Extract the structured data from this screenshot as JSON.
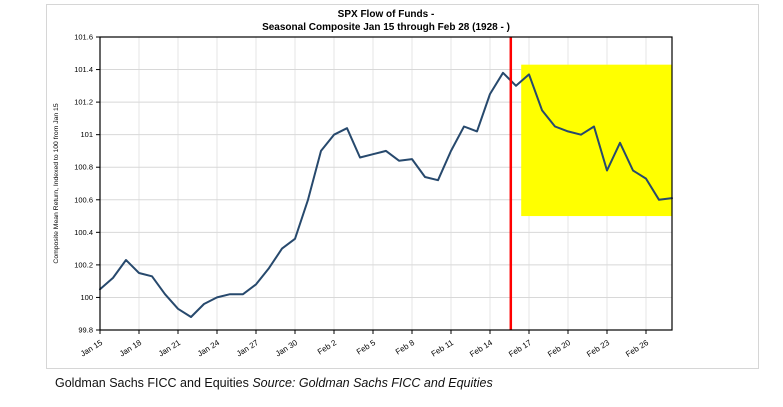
{
  "figure": {
    "title_line1": "SPX Flow of Funds -",
    "title_line2": "Seasonal Composite Jan 15 through Feb 28 (1928 - )"
  },
  "caption": {
    "text": "Goldman Sachs FICC and Equities ",
    "source": "Source: Goldman Sachs FICC and Equities"
  },
  "chart_data": {
    "type": "line",
    "title": "SPX Flow of Funds - Seasonal Composite Jan 15 through Feb 28 (1928 - )",
    "ylabel": "Composite Mean Return, Indexed to 100 from Jan 15",
    "xlabel": "",
    "ylim": [
      99.8,
      101.6
    ],
    "xlim": [
      0,
      44
    ],
    "x_unit": "days since Jan 15",
    "grid": true,
    "legend": "none",
    "line_color": "#27496d",
    "vline": {
      "x": 31.6,
      "color": "#ff0000"
    },
    "highlight_region": {
      "x0": 32.4,
      "x1": 44,
      "y0": 100.5,
      "y1": 101.43,
      "color": "#ffff00"
    },
    "yticks": [
      {
        "v": 99.8,
        "label": "99.8"
      },
      {
        "v": 100.0,
        "label": "100"
      },
      {
        "v": 100.2,
        "label": "100.2"
      },
      {
        "v": 100.4,
        "label": "100.4"
      },
      {
        "v": 100.6,
        "label": "100.6"
      },
      {
        "v": 100.8,
        "label": "100.8"
      },
      {
        "v": 101.0,
        "label": "101"
      },
      {
        "v": 101.2,
        "label": "101.2"
      },
      {
        "v": 101.4,
        "label": "101.4"
      },
      {
        "v": 101.6,
        "label": "101.6"
      }
    ],
    "xticks": [
      {
        "d": 0,
        "label": "Jan 15"
      },
      {
        "d": 3,
        "label": "Jan 18"
      },
      {
        "d": 6,
        "label": "Jan 21"
      },
      {
        "d": 9,
        "label": "Jan 24"
      },
      {
        "d": 12,
        "label": "Jan 27"
      },
      {
        "d": 15,
        "label": "Jan 30"
      },
      {
        "d": 18,
        "label": "Feb 2"
      },
      {
        "d": 21,
        "label": "Feb 5"
      },
      {
        "d": 24,
        "label": "Feb 8"
      },
      {
        "d": 27,
        "label": "Feb 11"
      },
      {
        "d": 30,
        "label": "Feb 14"
      },
      {
        "d": 33,
        "label": "Feb 17"
      },
      {
        "d": 36,
        "label": "Feb 20"
      },
      {
        "d": 39,
        "label": "Feb 23"
      },
      {
        "d": 42,
        "label": "Feb 26"
      }
    ],
    "series": [
      {
        "name": "seasonal-composite",
        "x": [
          0,
          1,
          2,
          3,
          4,
          5,
          6,
          7,
          8,
          9,
          10,
          11,
          12,
          13,
          14,
          15,
          16,
          17,
          18,
          19,
          20,
          21,
          22,
          23,
          24,
          25,
          26,
          27,
          28,
          29,
          30,
          31,
          32,
          33,
          34,
          35,
          36,
          37,
          38,
          39,
          40,
          41,
          42,
          43,
          44
        ],
        "values": [
          100.05,
          100.12,
          100.23,
          100.15,
          100.13,
          100.02,
          99.93,
          99.88,
          99.96,
          100.0,
          100.02,
          100.02,
          100.08,
          100.18,
          100.3,
          100.36,
          100.6,
          100.9,
          101.0,
          101.04,
          100.86,
          100.88,
          100.9,
          100.84,
          100.85,
          100.74,
          100.72,
          100.9,
          101.05,
          101.02,
          101.25,
          101.38,
          101.3,
          101.37,
          101.15,
          101.05,
          101.02,
          101.0,
          101.05,
          100.78,
          100.95,
          100.78,
          100.73,
          100.6,
          100.61
        ]
      }
    ]
  }
}
